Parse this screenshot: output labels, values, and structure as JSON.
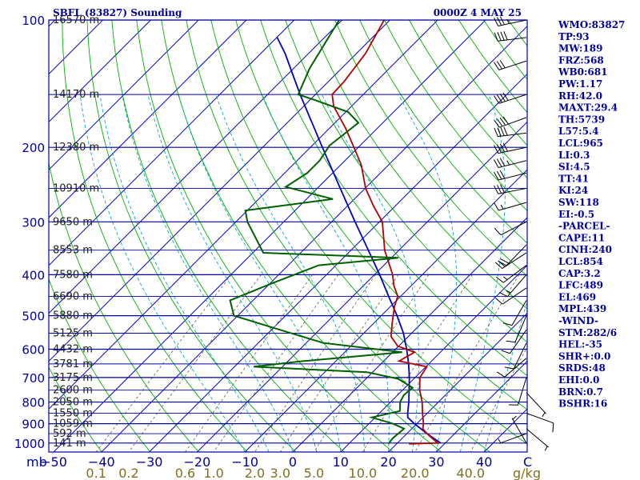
{
  "title": "SBFL (83827) Sounding",
  "time": "0000Z  4 MAY 25",
  "indices": [
    "WMO:83827",
    "TP:93",
    "MW:189",
    "FRZ:568",
    "WB0:681",
    "PW:1.17",
    "RH:42.0",
    "MAXT:29.4",
    "TH:5739",
    "L57:5.4",
    "LCL:965",
    "LI:0.3",
    "SI:4.5",
    "TT:41",
    "KI:24",
    "SW:118",
    "EI:-0.5",
    "-PARCEL-",
    "CAPE:11",
    "CINH:240",
    "LCL:854",
    "CAP:3.2",
    "LFC:489",
    "EL:469",
    "MPL:439",
    "-WIND-",
    "STM:282/6",
    "HEL:-35",
    "SHR+:0.0",
    "SRDS:48",
    "EHI:0.0",
    "BRN:0.7",
    "BSHR:16"
  ],
  "colors": {
    "frame": "#0000a0",
    "isobar": "#0000a0",
    "isotherm": "#0000c8",
    "dry_adiabat": "#00b000",
    "moist_adiabat": "#00a8c8",
    "mixing_ratio": "#707050",
    "temperature": "#b00000",
    "dewpoint": "#006000",
    "parcel": "#0000c0"
  },
  "chart_data": {
    "type": "skew-t",
    "pressure_labels": [
      100,
      200,
      300,
      400,
      500,
      600,
      700,
      800,
      900,
      1000
    ],
    "x_unit_label": "mb",
    "temperature_ticks": [
      -50,
      -40,
      -30,
      -20,
      -10,
      0,
      10,
      20,
      30,
      40
    ],
    "temperature_unit": "C",
    "mixing_ratio_ticks": [
      "0.1",
      "0.2",
      "0.6",
      "1.0",
      "2.0",
      "3.0",
      "5.0",
      "10.0",
      "20.0",
      "40.0"
    ],
    "mixing_ratio_unit": "g/kg",
    "height_levels": [
      {
        "p": 100,
        "label": "16570 m"
      },
      {
        "p": 150,
        "label": "14170 m"
      },
      {
        "p": 200,
        "label": "12380 m"
      },
      {
        "p": 250,
        "label": "10910 m"
      },
      {
        "p": 300,
        "label": "9650 m"
      },
      {
        "p": 350,
        "label": "8553 m"
      },
      {
        "p": 400,
        "label": "7580 m"
      },
      {
        "p": 450,
        "label": "6690 m"
      },
      {
        "p": 500,
        "label": "5880 m"
      },
      {
        "p": 550,
        "label": "5125 m"
      },
      {
        "p": 600,
        "label": "4432 m"
      },
      {
        "p": 650,
        "label": "3781 m"
      },
      {
        "p": 700,
        "label": "3175 m"
      },
      {
        "p": 750,
        "label": "2600 m"
      },
      {
        "p": 800,
        "label": "2050 m"
      },
      {
        "p": 850,
        "label": "1550 m"
      },
      {
        "p": 900,
        "label": "1059 m"
      },
      {
        "p": 950,
        "label": "592 m"
      },
      {
        "p": 1000,
        "label": "141 m"
      }
    ],
    "temperature": [
      {
        "p": 1005,
        "t": 22.6
      },
      {
        "p": 1000,
        "t": 28.4
      },
      {
        "p": 950,
        "t": 24.2
      },
      {
        "p": 925,
        "t": 22.3
      },
      {
        "p": 900,
        "t": 21.4
      },
      {
        "p": 850,
        "t": 19.0
      },
      {
        "p": 800,
        "t": 16.6
      },
      {
        "p": 750,
        "t": 13.6
      },
      {
        "p": 700,
        "t": 11.0
      },
      {
        "p": 660,
        "t": 10.2
      },
      {
        "p": 640,
        "t": 3.2
      },
      {
        "p": 610,
        "t": 4.6
      },
      {
        "p": 590,
        "t": -0.2
      },
      {
        "p": 560,
        "t": -3.6
      },
      {
        "p": 520,
        "t": -6.2
      },
      {
        "p": 500,
        "t": -7.5
      },
      {
        "p": 475,
        "t": -9.2
      },
      {
        "p": 450,
        "t": -10.6
      },
      {
        "p": 425,
        "t": -13.6
      },
      {
        "p": 400,
        "t": -16.2
      },
      {
        "p": 350,
        "t": -23.0
      },
      {
        "p": 320,
        "t": -26.7
      },
      {
        "p": 300,
        "t": -29.4
      },
      {
        "p": 275,
        "t": -34.6
      },
      {
        "p": 250,
        "t": -39.9
      },
      {
        "p": 220,
        "t": -45.7
      },
      {
        "p": 200,
        "t": -50.9
      },
      {
        "p": 180,
        "t": -56.7
      },
      {
        "p": 160,
        "t": -63.7
      },
      {
        "p": 150,
        "t": -66.5
      },
      {
        "p": 140,
        "t": -66.7
      },
      {
        "p": 120,
        "t": -68.1
      },
      {
        "p": 100,
        "t": -71.2
      }
    ],
    "dewpoint": [
      {
        "p": 1005,
        "td": 18.3
      },
      {
        "p": 975,
        "td": 18.0
      },
      {
        "p": 925,
        "td": 18.4
      },
      {
        "p": 900,
        "td": 15.0
      },
      {
        "p": 870,
        "td": 9.3
      },
      {
        "p": 840,
        "td": 13.8
      },
      {
        "p": 800,
        "td": 12.0
      },
      {
        "p": 770,
        "td": 11.3
      },
      {
        "p": 740,
        "td": 11.6
      },
      {
        "p": 705,
        "td": 6.7
      },
      {
        "p": 680,
        "td": -1.2
      },
      {
        "p": 660,
        "td": -26.0
      },
      {
        "p": 640,
        "td": -16.7
      },
      {
        "p": 610,
        "td": 2.0
      },
      {
        "p": 580,
        "td": -16.4
      },
      {
        "p": 540,
        "td": -28.2
      },
      {
        "p": 500,
        "td": -40.8
      },
      {
        "p": 460,
        "td": -44.8
      },
      {
        "p": 420,
        "td": -39.7
      },
      {
        "p": 380,
        "td": -33.6
      },
      {
        "p": 365,
        "td": -18.5
      },
      {
        "p": 355,
        "td": -47.8
      },
      {
        "p": 300,
        "td": -57.6
      },
      {
        "p": 282,
        "td": -60.4
      },
      {
        "p": 265,
        "td": -44.5
      },
      {
        "p": 248,
        "td": -56.9
      },
      {
        "p": 230,
        "td": -55.3
      },
      {
        "p": 215,
        "td": -55.3
      },
      {
        "p": 198,
        "td": -56.4
      },
      {
        "p": 175,
        "td": -55.1
      },
      {
        "p": 165,
        "td": -59.5
      },
      {
        "p": 155,
        "td": -68.6
      },
      {
        "p": 150,
        "td": -73.6
      },
      {
        "p": 130,
        "td": -76.7
      },
      {
        "p": 100,
        "td": -80.6
      }
    ],
    "parcel": [
      {
        "p": 1000,
        "t": 29.0
      },
      {
        "p": 950,
        "t": 24.2
      },
      {
        "p": 900,
        "t": 19.5
      },
      {
        "p": 870,
        "t": 16.8
      },
      {
        "p": 850,
        "t": 15.9
      },
      {
        "p": 800,
        "t": 13.8
      },
      {
        "p": 750,
        "t": 11.4
      },
      {
        "p": 700,
        "t": 8.8
      },
      {
        "p": 650,
        "t": 5.8
      },
      {
        "p": 600,
        "t": 2.3
      },
      {
        "p": 550,
        "t": -1.7
      },
      {
        "p": 500,
        "t": -6.7
      },
      {
        "p": 450,
        "t": -12.5
      },
      {
        "p": 400,
        "t": -18.9
      },
      {
        "p": 350,
        "t": -26.4
      },
      {
        "p": 300,
        "t": -35.1
      },
      {
        "p": 250,
        "t": -45.2
      },
      {
        "p": 200,
        "t": -57.5
      },
      {
        "p": 150,
        "t": -73.2
      },
      {
        "p": 120,
        "t": -84.9
      },
      {
        "p": 110,
        "t": -89.9
      }
    ],
    "wind_barbs": [
      {
        "p": 100,
        "dir": 258,
        "spd": 35
      },
      {
        "p": 110,
        "dir": 263,
        "spd": 38
      },
      {
        "p": 125,
        "dir": 252,
        "spd": 32
      },
      {
        "p": 150,
        "dir": 252,
        "spd": 42
      },
      {
        "p": 170,
        "dir": 250,
        "spd": 38
      },
      {
        "p": 185,
        "dir": 263,
        "spd": 42
      },
      {
        "p": 200,
        "dir": 258,
        "spd": 40
      },
      {
        "p": 215,
        "dir": 256,
        "spd": 35
      },
      {
        "p": 230,
        "dir": 256,
        "spd": 32
      },
      {
        "p": 250,
        "dir": 259,
        "spd": 28
      },
      {
        "p": 270,
        "dir": 254,
        "spd": 15
      },
      {
        "p": 300,
        "dir": 243,
        "spd": 10
      },
      {
        "p": 340,
        "dir": 224,
        "spd": 22
      },
      {
        "p": 355,
        "dir": 237,
        "spd": 18
      },
      {
        "p": 380,
        "dir": 233,
        "spd": 15
      },
      {
        "p": 400,
        "dir": 221,
        "spd": 15
      },
      {
        "p": 430,
        "dir": 236,
        "spd": 12
      },
      {
        "p": 460,
        "dir": 210,
        "spd": 10
      },
      {
        "p": 500,
        "dir": 203,
        "spd": 10
      },
      {
        "p": 540,
        "dir": 215,
        "spd": 12
      },
      {
        "p": 580,
        "dir": 206,
        "spd": 10
      },
      {
        "p": 630,
        "dir": 229,
        "spd": 12
      },
      {
        "p": 700,
        "dir": 197,
        "spd": 10
      },
      {
        "p": 760,
        "dir": 137,
        "spd": 5
      },
      {
        "p": 850,
        "dir": 110,
        "spd": 10
      },
      {
        "p": 925,
        "dir": 130,
        "spd": 5
      },
      {
        "p": 950,
        "dir": 250,
        "spd": 5
      },
      {
        "p": 1000,
        "dir": 330,
        "spd": 3
      }
    ]
  }
}
